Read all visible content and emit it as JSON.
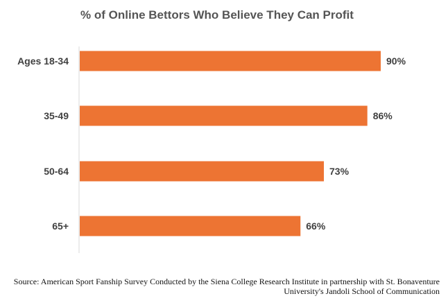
{
  "chart_data": {
    "type": "bar",
    "orientation": "horizontal",
    "title": "% of Online Bettors Who Believe They Can Profit",
    "categories": [
      "Ages 18-34",
      "35-49",
      "50-64",
      "65+"
    ],
    "values": [
      90,
      86,
      73,
      66
    ],
    "value_labels": [
      "90%",
      "86%",
      "73%",
      "66%"
    ],
    "xlim": [
      0,
      100
    ],
    "grid": false,
    "legend": "none",
    "bar_color": "#ED7433"
  },
  "source": {
    "line1": "Source: American Sport Fanship Survey Conducted by the Siena College Research Institute in partnership with St. Bonaventure",
    "line2": "University's Jandoli School of Communication"
  }
}
